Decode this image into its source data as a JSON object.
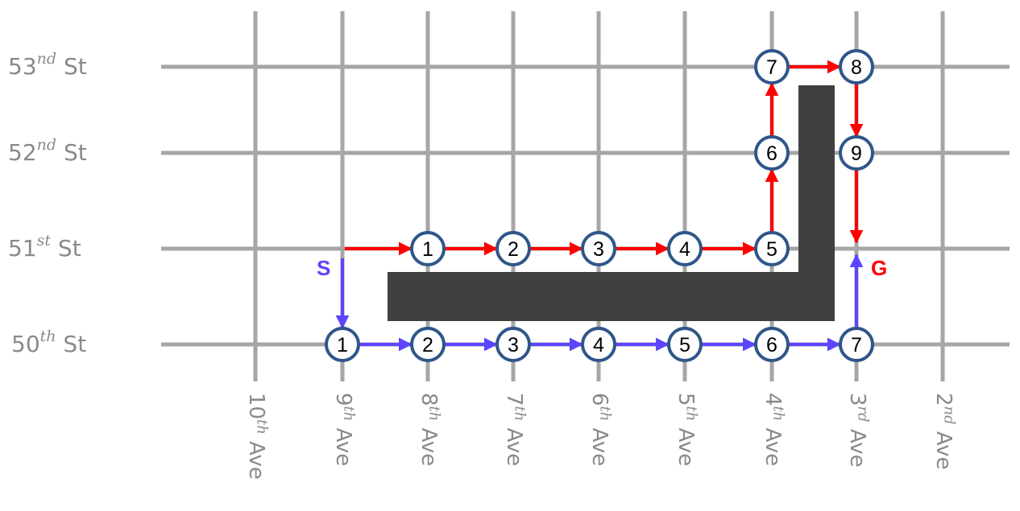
{
  "streets": [
    {
      "num": "53",
      "suffix": "nd",
      "word": "St"
    },
    {
      "num": "52",
      "suffix": "nd",
      "word": "St"
    },
    {
      "num": "51",
      "suffix": "st",
      "word": "St"
    },
    {
      "num": "50",
      "suffix": "th",
      "word": "St"
    }
  ],
  "avenues": [
    {
      "num": "10",
      "suffix": "th",
      "word": "Ave"
    },
    {
      "num": "9",
      "suffix": "th",
      "word": "Ave"
    },
    {
      "num": "8",
      "suffix": "th",
      "word": "Ave"
    },
    {
      "num": "7",
      "suffix": "th",
      "word": "Ave"
    },
    {
      "num": "6",
      "suffix": "th",
      "word": "Ave"
    },
    {
      "num": "5",
      "suffix": "th",
      "word": "Ave"
    },
    {
      "num": "4",
      "suffix": "th",
      "word": "Ave"
    },
    {
      "num": "3",
      "suffix": "rd",
      "word": "Ave"
    },
    {
      "num": "2",
      "suffix": "nd",
      "word": "Ave"
    }
  ],
  "start_label": "S",
  "goal_label": "G",
  "colors": {
    "grid": "#a6a6a6",
    "obstacle": "#404040",
    "red_path": "#ff0000",
    "blue_path": "#5b45ff",
    "node_border": "#2f5689",
    "label": "#8a8a8a"
  },
  "red_path": {
    "start": {
      "ave": "9",
      "street": "51"
    },
    "nodes": [
      {
        "label": "1",
        "ave": "8",
        "street": "51"
      },
      {
        "label": "2",
        "ave": "7",
        "street": "51"
      },
      {
        "label": "3",
        "ave": "6",
        "street": "51"
      },
      {
        "label": "4",
        "ave": "5",
        "street": "51"
      },
      {
        "label": "5",
        "ave": "4",
        "street": "51"
      },
      {
        "label": "6",
        "ave": "4",
        "street": "52"
      },
      {
        "label": "7",
        "ave": "4",
        "street": "53"
      },
      {
        "label": "8",
        "ave": "3",
        "street": "53"
      },
      {
        "label": "9",
        "ave": "3",
        "street": "52"
      }
    ],
    "end": {
      "ave": "3",
      "street": "51"
    }
  },
  "blue_path": {
    "start": {
      "ave": "9",
      "street": "51"
    },
    "nodes": [
      {
        "label": "1",
        "ave": "9",
        "street": "50"
      },
      {
        "label": "2",
        "ave": "8",
        "street": "50"
      },
      {
        "label": "3",
        "ave": "7",
        "street": "50"
      },
      {
        "label": "4",
        "ave": "6",
        "street": "50"
      },
      {
        "label": "5",
        "ave": "5",
        "street": "50"
      },
      {
        "label": "6",
        "ave": "4",
        "street": "50"
      },
      {
        "label": "7",
        "ave": "3",
        "street": "50"
      }
    ],
    "end": {
      "ave": "3",
      "street": "51"
    }
  }
}
